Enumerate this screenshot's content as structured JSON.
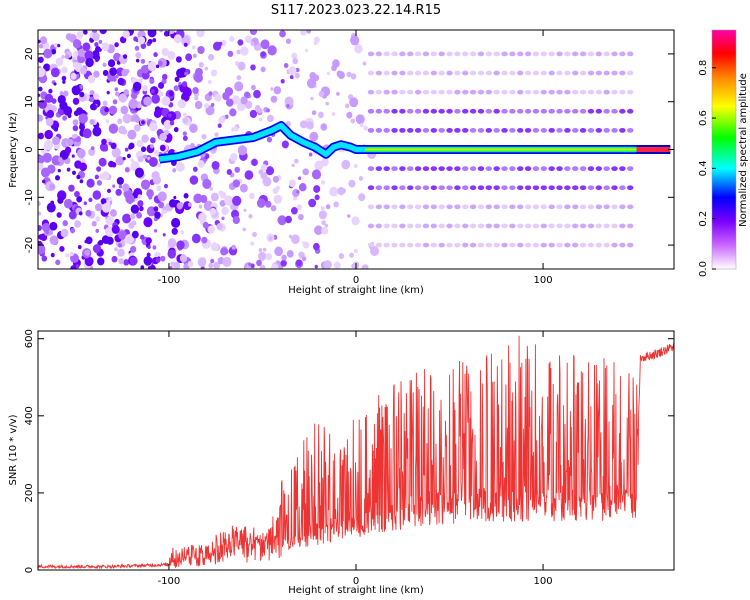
{
  "title": "S117.2023.023.22.14.R15",
  "chart_data": [
    {
      "type": "heatmap",
      "xlabel": "Height of straight line (km)",
      "ylabel": "Frequency (Hz)",
      "xlim": [
        -170,
        170
      ],
      "ylim": [
        -25,
        25
      ],
      "x_ticks": [
        -100,
        0,
        100
      ],
      "y_ticks": [
        -20,
        -10,
        0,
        10,
        20
      ],
      "colorbar": {
        "label": "Normalized spectral amplitude",
        "range": [
          0.0,
          0.95
        ],
        "ticks": [
          "0.0",
          "0.2",
          "0.4",
          "0.6",
          "0.8"
        ],
        "colors": [
          "#ffffff",
          "#cc66ff",
          "#7700ff",
          "#0000ff",
          "#00ffff",
          "#00ff00",
          "#ffff00",
          "#ff8800",
          "#ff0000",
          "#ff00aa"
        ]
      },
      "dominant_line": {
        "x": [
          -105,
          -95,
          -85,
          -75,
          -65,
          -55,
          -45,
          -40,
          -35,
          -28,
          -22,
          -16,
          -12,
          -8,
          -3,
          0,
          5,
          150,
          168
        ],
        "y": [
          -2,
          -1.5,
          -0.5,
          1.5,
          2,
          2.5,
          4,
          5,
          3,
          1.5,
          0.5,
          -1,
          0.5,
          1,
          0.5,
          0,
          0,
          0,
          0
        ]
      },
      "harmonic_lines_hz": [
        -20,
        -16,
        -12,
        -8,
        -4,
        4,
        8,
        12,
        16,
        20
      ]
    },
    {
      "type": "line",
      "xlabel": "Height of straight line (km)",
      "ylabel": "SNR (10 * v/v)",
      "xlim": [
        -170,
        170
      ],
      "ylim": [
        0,
        620
      ],
      "x_ticks": [
        -100,
        0,
        100
      ],
      "y_ticks": [
        0,
        200,
        400,
        600
      ],
      "color": "#ee3333",
      "series": [
        {
          "x": [
            -170,
            -130,
            -100,
            -90,
            -80,
            -70,
            -60,
            -50,
            -40,
            -30,
            -20,
            -10,
            0,
            10,
            20,
            30,
            50,
            70,
            90,
            110,
            130,
            150,
            152,
            160,
            170
          ],
          "y": [
            5,
            5,
            10,
            20,
            40,
            50,
            60,
            70,
            80,
            90,
            110,
            125,
            140,
            155,
            170,
            180,
            200,
            205,
            210,
            210,
            210,
            210,
            550,
            560,
            580
          ]
        }
      ],
      "peaks": {
        "x": [
          -80,
          -70,
          -60,
          -50,
          -40,
          -30,
          -20,
          -10,
          0,
          10,
          20,
          30,
          50,
          70,
          90,
          110,
          130,
          150
        ],
        "y": [
          100,
          160,
          180,
          130,
          250,
          320,
          400,
          330,
          420,
          450,
          480,
          520,
          540,
          560,
          620,
          570,
          560,
          520
        ]
      }
    }
  ]
}
